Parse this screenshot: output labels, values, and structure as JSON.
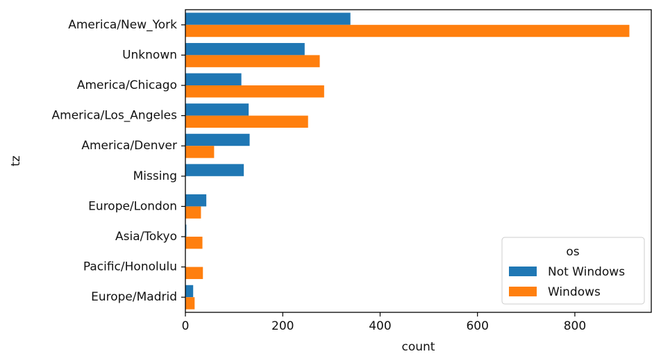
{
  "chart_data": {
    "type": "bar",
    "orientation": "horizontal",
    "categories": [
      "America/New_York",
      "Unknown",
      "America/Chicago",
      "America/Los_Angeles",
      "America/Denver",
      "Missing",
      "Europe/London",
      "Asia/Tokyo",
      "Pacific/Honolulu",
      "Europe/Madrid"
    ],
    "series": [
      {
        "name": "Not Windows",
        "values": [
          339,
          245,
          115,
          130,
          132,
          120,
          43,
          2,
          0,
          16
        ],
        "color": "#1f77b4"
      },
      {
        "name": "Windows",
        "values": [
          912,
          276,
          285,
          252,
          59,
          0,
          32,
          35,
          36,
          19
        ],
        "color": "#ff7f0e"
      }
    ],
    "xlabel": "count",
    "ylabel": "tz",
    "xlim": [
      0,
      957
    ],
    "xticks": [
      0,
      200,
      400,
      600,
      800
    ],
    "grid": false,
    "legend": {
      "title": "os",
      "placement": "lower right"
    }
  }
}
